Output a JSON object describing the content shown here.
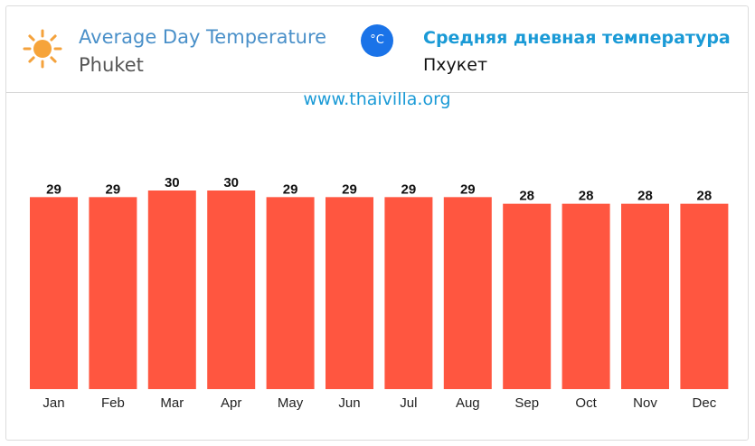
{
  "header": {
    "title_en": "Average Day Temperature",
    "city_en": "Phuket",
    "unit_toggle": "°C",
    "title_ru": "Средняя дневная температура",
    "city_ru": "Пхукет",
    "icon": "sun-icon"
  },
  "site_url": "www.thaivilla.org",
  "colors": {
    "bar": "#ff5640",
    "title_en": "#4a90c9",
    "title_ru": "#1a9ad6",
    "unit_button": "#1a73e8"
  },
  "chart_data": {
    "type": "bar",
    "categories": [
      "Jan",
      "Feb",
      "Mar",
      "Apr",
      "May",
      "Jun",
      "Jul",
      "Aug",
      "Sep",
      "Oct",
      "Nov",
      "Dec"
    ],
    "values": [
      29,
      29,
      30,
      30,
      29,
      29,
      29,
      29,
      28,
      28,
      28,
      28
    ],
    "ylim": [
      0,
      30
    ],
    "grid": false,
    "legend": "none"
  }
}
